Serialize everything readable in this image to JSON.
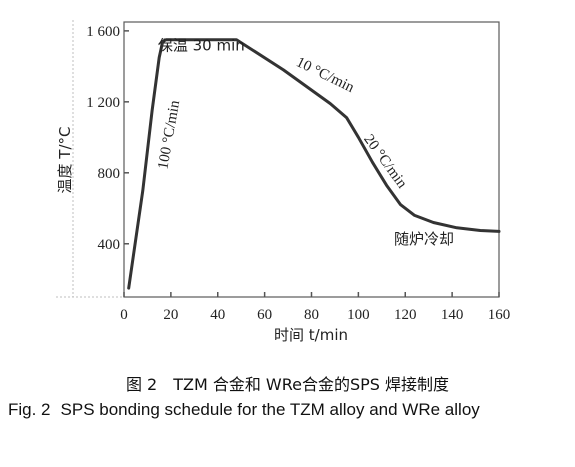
{
  "figure": {
    "caption_cn": "图 2　TZM 合金和 WRe合金的SPS 焊接制度",
    "caption_en_label": "Fig. 2",
    "caption_en_text": "SPS bonding schedule for the TZM alloy and WRe alloy"
  },
  "chart_data": {
    "type": "line",
    "xlabel": "时间 t/min",
    "ylabel": "温度 T/°C",
    "xlim": [
      0,
      160
    ],
    "ylim": [
      100,
      1650
    ],
    "x_ticks": [
      0,
      20,
      40,
      60,
      80,
      100,
      120,
      140,
      160
    ],
    "x_tick_labels": [
      "0",
      "20",
      "40",
      "60",
      "80",
      "100",
      "120",
      "140",
      "160"
    ],
    "y_ticks": [
      400,
      800,
      1200,
      1600
    ],
    "y_tick_labels": [
      "400",
      "800",
      "1 200",
      "1 600"
    ],
    "grid": false,
    "series": [
      {
        "x": [
          2,
          8,
          12,
          15,
          16.5,
          18,
          48,
          68,
          88,
          95,
          100,
          106,
          112,
          118,
          124,
          132,
          142,
          152,
          160
        ],
        "y": [
          150,
          700,
          1150,
          1450,
          1540,
          1550,
          1550,
          1380,
          1190,
          1110,
          1000,
          860,
          730,
          620,
          560,
          520,
          490,
          475,
          470
        ]
      }
    ],
    "annotations": [
      {
        "text": "保温 30 min",
        "x": 33,
        "y": 1490
      },
      {
        "text": "100 °C/min",
        "x": 21,
        "y": 1010
      },
      {
        "text": "10 °C/min",
        "x": 85,
        "y": 1330
      },
      {
        "text": "20 °C/min",
        "x": 110,
        "y": 850
      },
      {
        "text": "随炉冷却",
        "x": 128,
        "y": 400
      }
    ]
  }
}
